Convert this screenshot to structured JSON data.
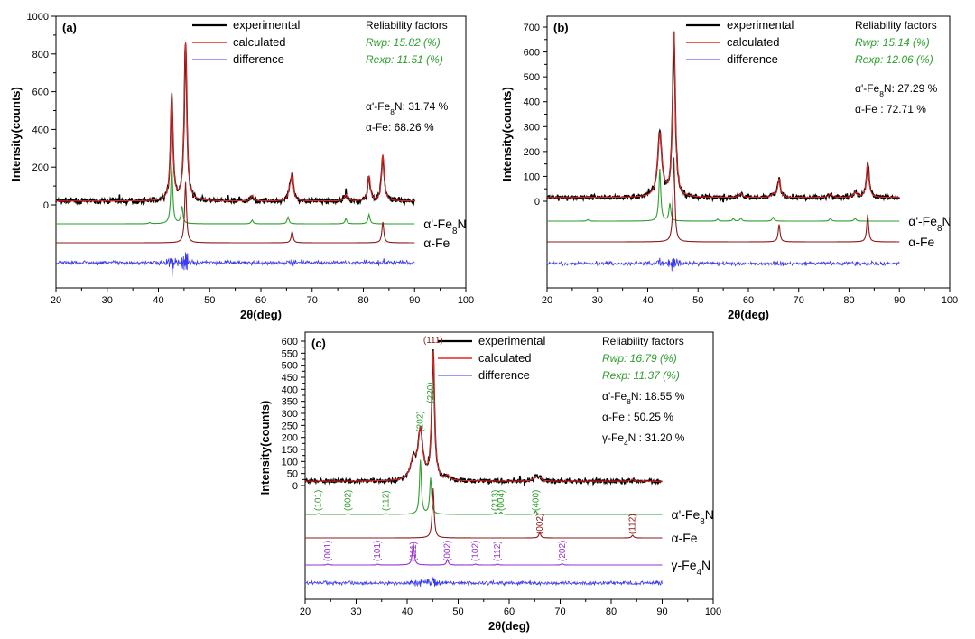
{
  "colors": {
    "experimental": "#000000",
    "calculated": "#e8221e",
    "difference": "#3a3af0",
    "fe8n": "#2e9e2e",
    "fe": "#8b1a1a",
    "fe4n": "#9933cc"
  },
  "chart_data": [
    {
      "type": "line",
      "panel": "(a)",
      "xlabel": "2θ(deg)",
      "ylabel": "Intensity(counts)",
      "xlim": [
        20,
        100
      ],
      "ylim": [
        0,
        1000
      ],
      "xticks": [
        "20",
        "30",
        "40",
        "50",
        "60",
        "70",
        "80",
        "90",
        "100"
      ],
      "yticks": [
        "0",
        "200",
        "400",
        "600",
        "800",
        "1000"
      ],
      "legend": [
        "experimental",
        "calculated",
        "difference"
      ],
      "reliability_title": "Reliability factors",
      "rwp": "Rwp: 15.82 (%)",
      "rexp": "Rexp: 11.51 (%)",
      "fractions": [
        "α'-Fe8N: 31.74 %",
        "α-Fe:     68.26 %"
      ],
      "phases": [
        "α'-Fe8N",
        "α-Fe"
      ],
      "background": 20,
      "peaks": [
        {
          "x": 42.6,
          "y": 565,
          "w": 0.28
        },
        {
          "x": 45.3,
          "y": 840,
          "w": 0.3
        },
        {
          "x": 58.3,
          "y": 30,
          "w": 0.3
        },
        {
          "x": 65.6,
          "y": 50,
          "w": 0.3
        },
        {
          "x": 66.1,
          "y": 135,
          "w": 0.28
        },
        {
          "x": 76.6,
          "y": 35,
          "w": 0.3
        },
        {
          "x": 81.1,
          "y": 130,
          "w": 0.3
        },
        {
          "x": 83.8,
          "y": 245,
          "w": 0.3
        }
      ],
      "phase_peaks": [
        [
          {
            "x": 38.3,
            "y": 3
          },
          {
            "x": 42.6,
            "y": 160
          },
          {
            "x": 44.6,
            "y": 45
          },
          {
            "x": 58.3,
            "y": 10
          },
          {
            "x": 65.3,
            "y": 18
          },
          {
            "x": 76.6,
            "y": 14
          },
          {
            "x": 81.1,
            "y": 25
          }
        ],
        [
          {
            "x": 45.3,
            "y": 160
          },
          {
            "x": 66.1,
            "y": 30
          },
          {
            "x": 83.8,
            "y": 55
          }
        ]
      ]
    },
    {
      "type": "line",
      "panel": "(b)",
      "xlabel": "2θ(deg)",
      "ylabel": "Intensity(counts)",
      "xlim": [
        20,
        100
      ],
      "ylim": [
        0,
        700
      ],
      "xticks": [
        "20",
        "30",
        "40",
        "50",
        "60",
        "70",
        "80",
        "90",
        "100"
      ],
      "yticks": [
        "0",
        "100",
        "200",
        "300",
        "400",
        "500",
        "600",
        "700"
      ],
      "legend": [
        "experimental",
        "calculated",
        "difference"
      ],
      "reliability_title": "Reliability factors",
      "rwp": "Rwp: 15.14 (%)",
      "rexp": "Rexp: 12.06 (%)",
      "fractions": [
        "α'-Fe8N: 27.29 %",
        "α-Fe :    72.71 %"
      ],
      "phases": [
        "α'-Fe8N",
        "α-Fe"
      ],
      "background": 15,
      "peaks": [
        {
          "x": 42.4,
          "y": 255,
          "w": 0.5
        },
        {
          "x": 45.2,
          "y": 655,
          "w": 0.32
        },
        {
          "x": 58.5,
          "y": 15,
          "w": 0.4
        },
        {
          "x": 64.9,
          "y": 12,
          "w": 0.4
        },
        {
          "x": 66.1,
          "y": 75,
          "w": 0.3
        },
        {
          "x": 76.3,
          "y": 15,
          "w": 0.4
        },
        {
          "x": 81.2,
          "y": 20,
          "w": 0.4
        },
        {
          "x": 83.7,
          "y": 140,
          "w": 0.3
        }
      ],
      "phase_peaks": [
        [
          {
            "x": 28.1,
            "y": 3
          },
          {
            "x": 42.4,
            "y": 105
          },
          {
            "x": 44.4,
            "y": 35
          },
          {
            "x": 53.9,
            "y": 4
          },
          {
            "x": 57.0,
            "y": 5
          },
          {
            "x": 58.5,
            "y": 6
          },
          {
            "x": 64.9,
            "y": 8
          },
          {
            "x": 76.3,
            "y": 6
          },
          {
            "x": 81.2,
            "y": 6
          }
        ],
        [
          {
            "x": 45.2,
            "y": 170
          },
          {
            "x": 66.1,
            "y": 35
          },
          {
            "x": 83.7,
            "y": 55
          }
        ]
      ]
    },
    {
      "type": "line",
      "panel": "(c)",
      "xlabel": "2θ(deg)",
      "ylabel": "Intensity(counts)",
      "xlim": [
        20,
        100
      ],
      "ylim": [
        0,
        600
      ],
      "xticks": [
        "20",
        "30",
        "40",
        "50",
        "60",
        "70",
        "80",
        "90",
        "100"
      ],
      "yticks": [
        "0",
        "50",
        "100",
        "150",
        "200",
        "250",
        "300",
        "350",
        "400",
        "450",
        "500",
        "550",
        "600"
      ],
      "legend": [
        "experimental",
        "calculated",
        "difference"
      ],
      "reliability_title": "Reliability factors",
      "rwp": "Rwp: 16.79 (%)",
      "rexp": "Rexp: 11.37 (%)",
      "fractions": [
        "α'-Fe8N: 18.55 %",
        "α-Fe      : 50.25 %",
        "γ-Fe4N    : 31.20 %"
      ],
      "phases": [
        "α'-Fe8N",
        "α-Fe",
        "γ-Fe4N"
      ],
      "background": 18,
      "peaks": [
        {
          "x": 41.2,
          "y": 80,
          "w": 0.7
        },
        {
          "x": 42.6,
          "y": 200,
          "w": 0.55
        },
        {
          "x": 45.1,
          "y": 530,
          "w": 0.32
        },
        {
          "x": 47.9,
          "y": 18,
          "w": 0.4
        },
        {
          "x": 65.2,
          "y": 18,
          "w": 0.5
        },
        {
          "x": 66.0,
          "y": 12,
          "w": 0.4
        },
        {
          "x": 84.2,
          "y": 6,
          "w": 0.4
        }
      ],
      "phase_peaks": [
        [
          {
            "x": 22.6,
            "y": 2
          },
          {
            "x": 28.4,
            "y": 2
          },
          {
            "x": 35.8,
            "y": 2
          },
          {
            "x": 42.6,
            "y": 120
          },
          {
            "x": 44.6,
            "y": 80
          },
          {
            "x": 57.3,
            "y": 4
          },
          {
            "x": 58.4,
            "y": 5
          },
          {
            "x": 65.2,
            "y": 8
          }
        ],
        [
          {
            "x": 45.1,
            "y": 110
          },
          {
            "x": 66.0,
            "y": 12
          },
          {
            "x": 84.2,
            "y": 6
          }
        ]
      ],
      "phase3_peaks": [
        {
          "x": 24.4,
          "y": 2
        },
        {
          "x": 34.2,
          "y": 2
        },
        {
          "x": 41.2,
          "y": 50
        },
        {
          "x": 47.9,
          "y": 12
        },
        {
          "x": 53.4,
          "y": 2
        },
        {
          "x": 57.7,
          "y": 2
        },
        {
          "x": 70.4,
          "y": 3
        }
      ],
      "hkl": {
        "top": [
          {
            "label": "(111)",
            "x": 45.1,
            "color": "fe"
          },
          {
            "label": "(202)",
            "x": 42.6,
            "color": "fe8n"
          },
          {
            "label": "(220)",
            "x": 44.6,
            "color": "fe8n"
          }
        ],
        "fe8n": [
          {
            "label": "(101)",
            "x": 22.6
          },
          {
            "label": "(002)",
            "x": 28.4
          },
          {
            "label": "(112)",
            "x": 35.8
          },
          {
            "label": "(213)",
            "x": 57.3
          },
          {
            "label": "(004)",
            "x": 58.4
          },
          {
            "label": "(400)",
            "x": 65.2
          }
        ],
        "fe": [
          {
            "label": "(002)",
            "x": 66.0
          },
          {
            "label": "(112)",
            "x": 84.2
          }
        ],
        "fe4n": [
          {
            "label": "(001)",
            "x": 24.4
          },
          {
            "label": "(101)",
            "x": 34.2
          },
          {
            "label": "(111)",
            "x": 41.2
          },
          {
            "label": "(002)",
            "x": 47.9
          },
          {
            "label": "(102)",
            "x": 53.4
          },
          {
            "label": "(112)",
            "x": 57.7
          },
          {
            "label": "(202)",
            "x": 70.4
          }
        ]
      }
    }
  ]
}
